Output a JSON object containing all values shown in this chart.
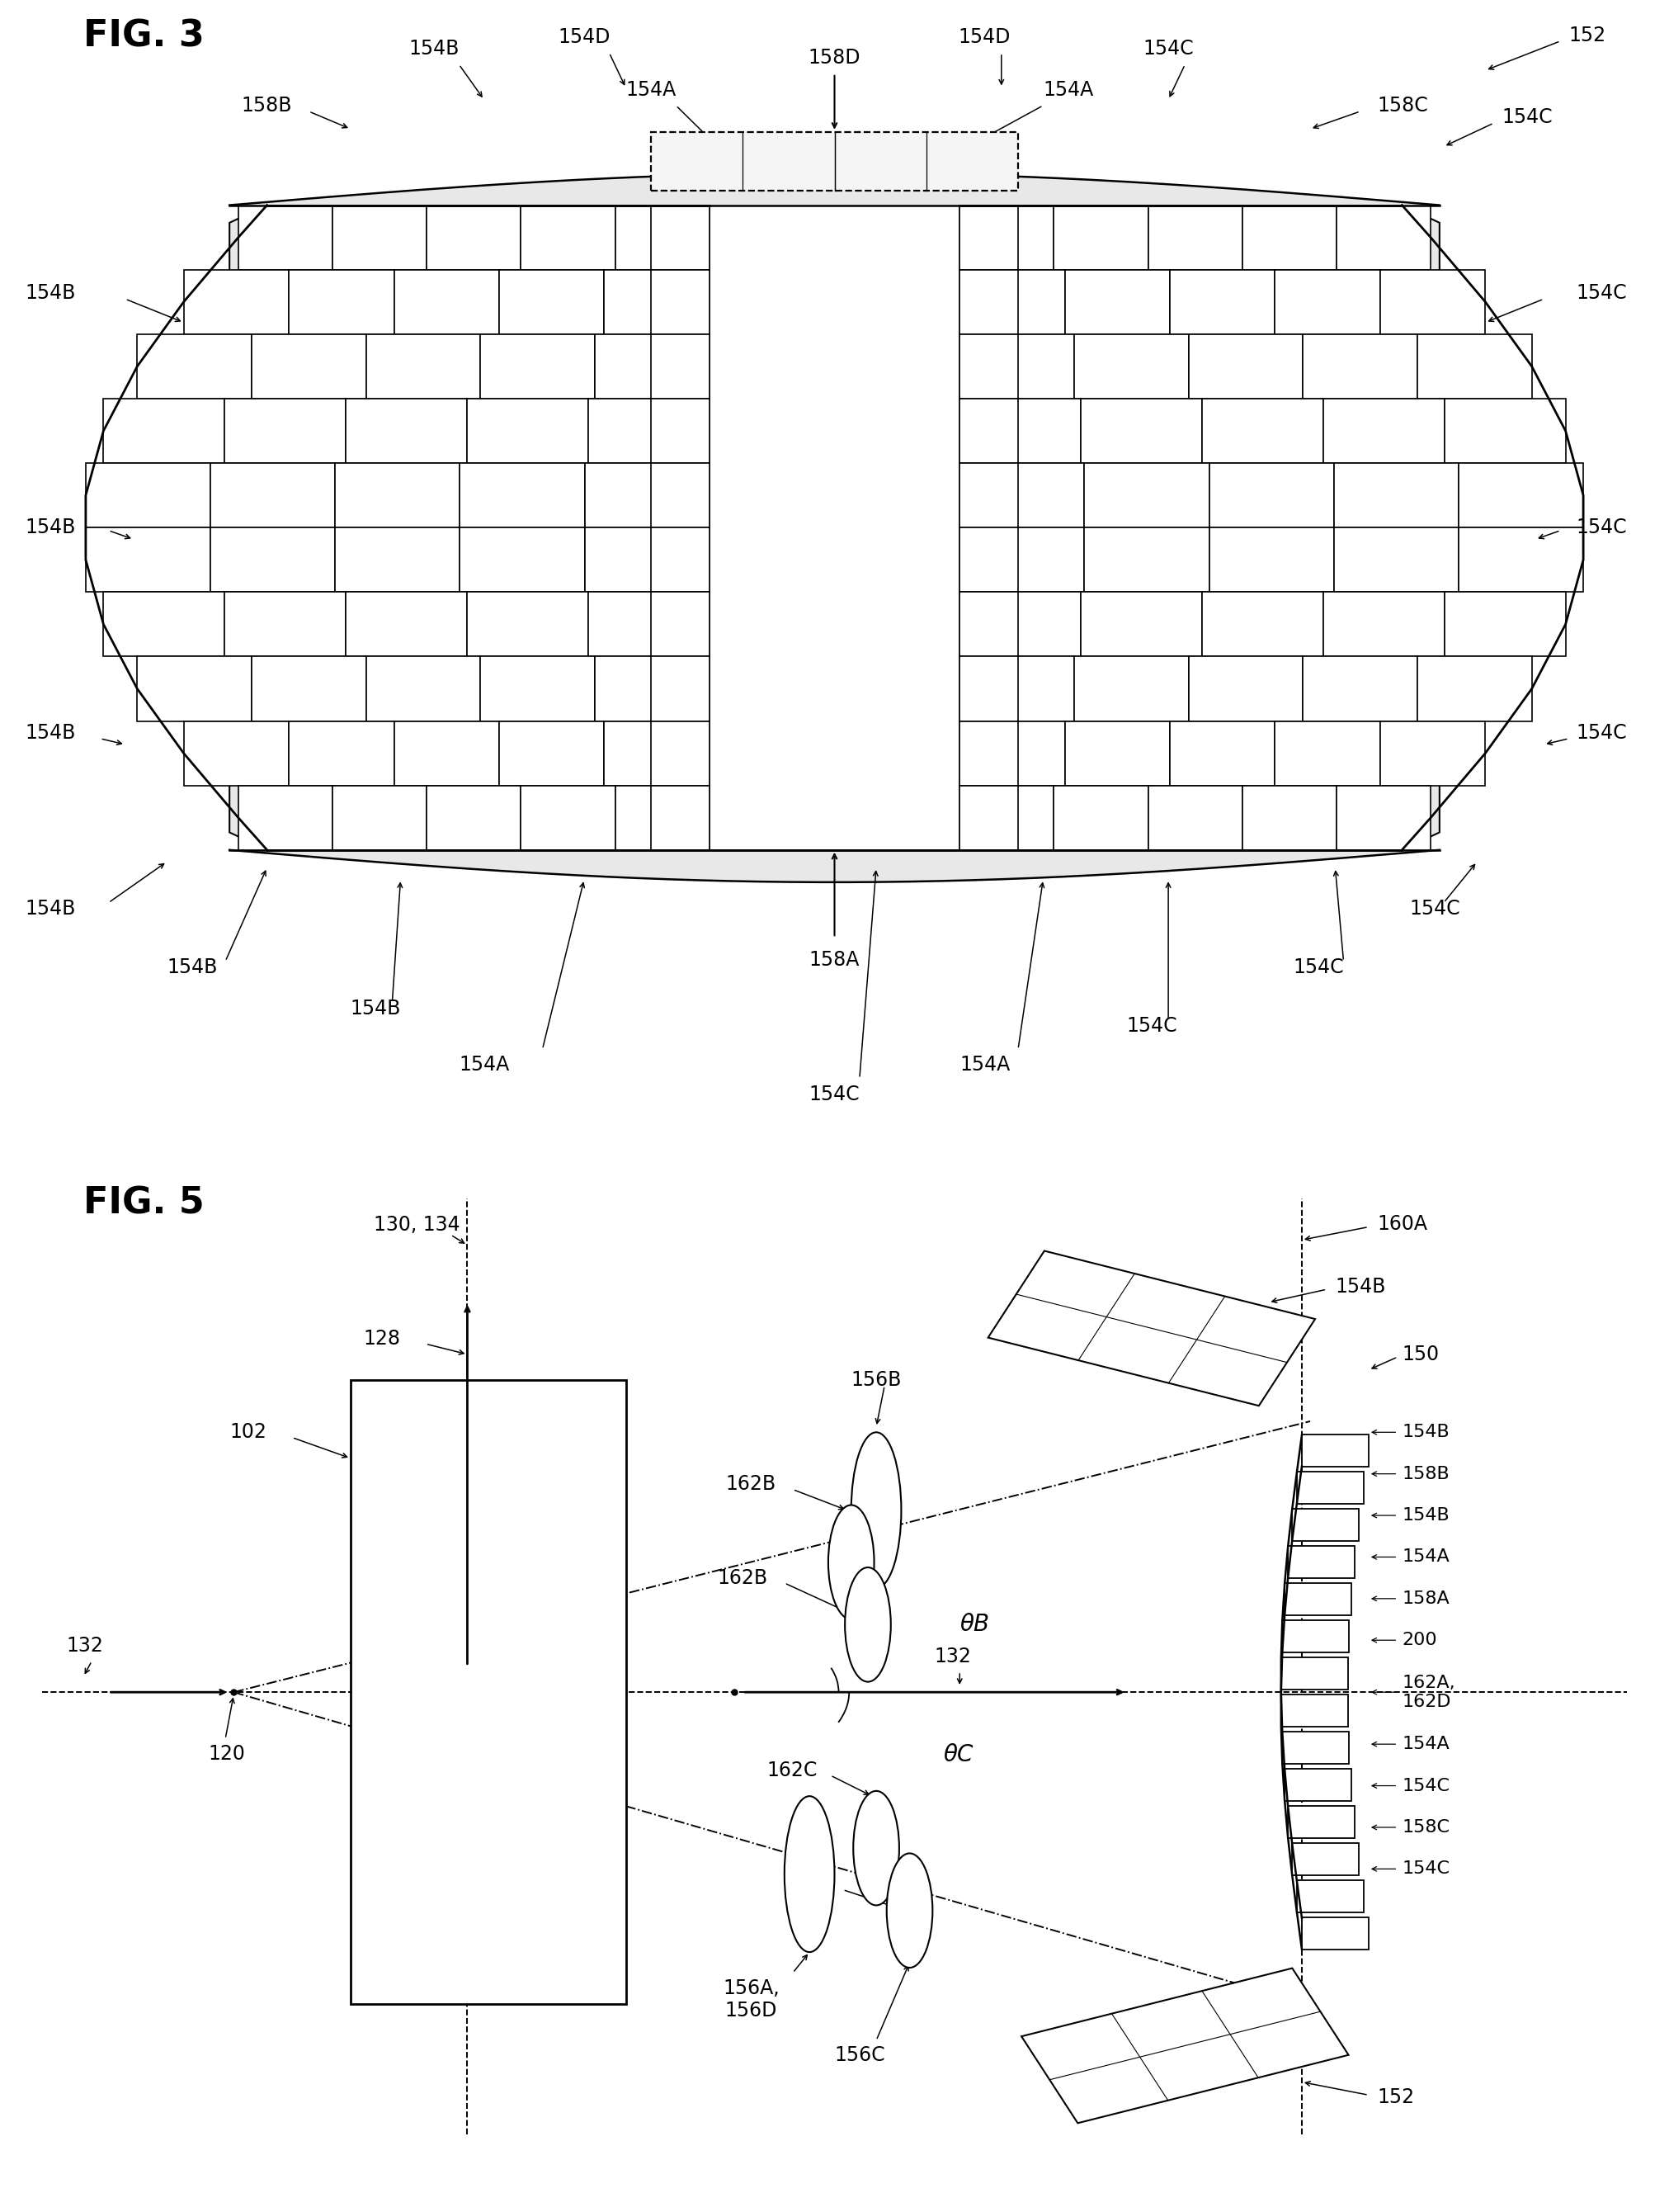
{
  "fig3_title": "FIG. 3",
  "fig5_title": "FIG. 5",
  "bg_color": "#ffffff",
  "line_color": "#000000",
  "fig_label_fontsize": 32,
  "annotation_fontsize": 17,
  "fig3": {
    "label_152": "152",
    "label_154A": "154A",
    "label_154B": "154B",
    "label_154C": "154C",
    "label_154D": "154D",
    "label_158A": "158A",
    "label_158B": "158B",
    "label_158C": "158C",
    "label_158D": "158D"
  },
  "fig5": {
    "label_102": "102",
    "label_120": "120",
    "label_128": "128",
    "label_130_134": "130, 134",
    "label_132": "132",
    "label_150": "150",
    "label_152": "152",
    "label_154A": "154A",
    "label_154B": "154B",
    "label_154C": "154C",
    "label_156A_D": "156A,\n156D",
    "label_156B": "156B",
    "label_156C": "156C",
    "label_158A": "158A",
    "label_158B": "158B",
    "label_158C": "158C",
    "label_160A": "160A",
    "label_162A_D": "162A,\n162D",
    "label_162B": "162B",
    "label_162C": "162C",
    "label_200": "200",
    "label_thetaB": "θB",
    "label_thetaC": "θC"
  }
}
